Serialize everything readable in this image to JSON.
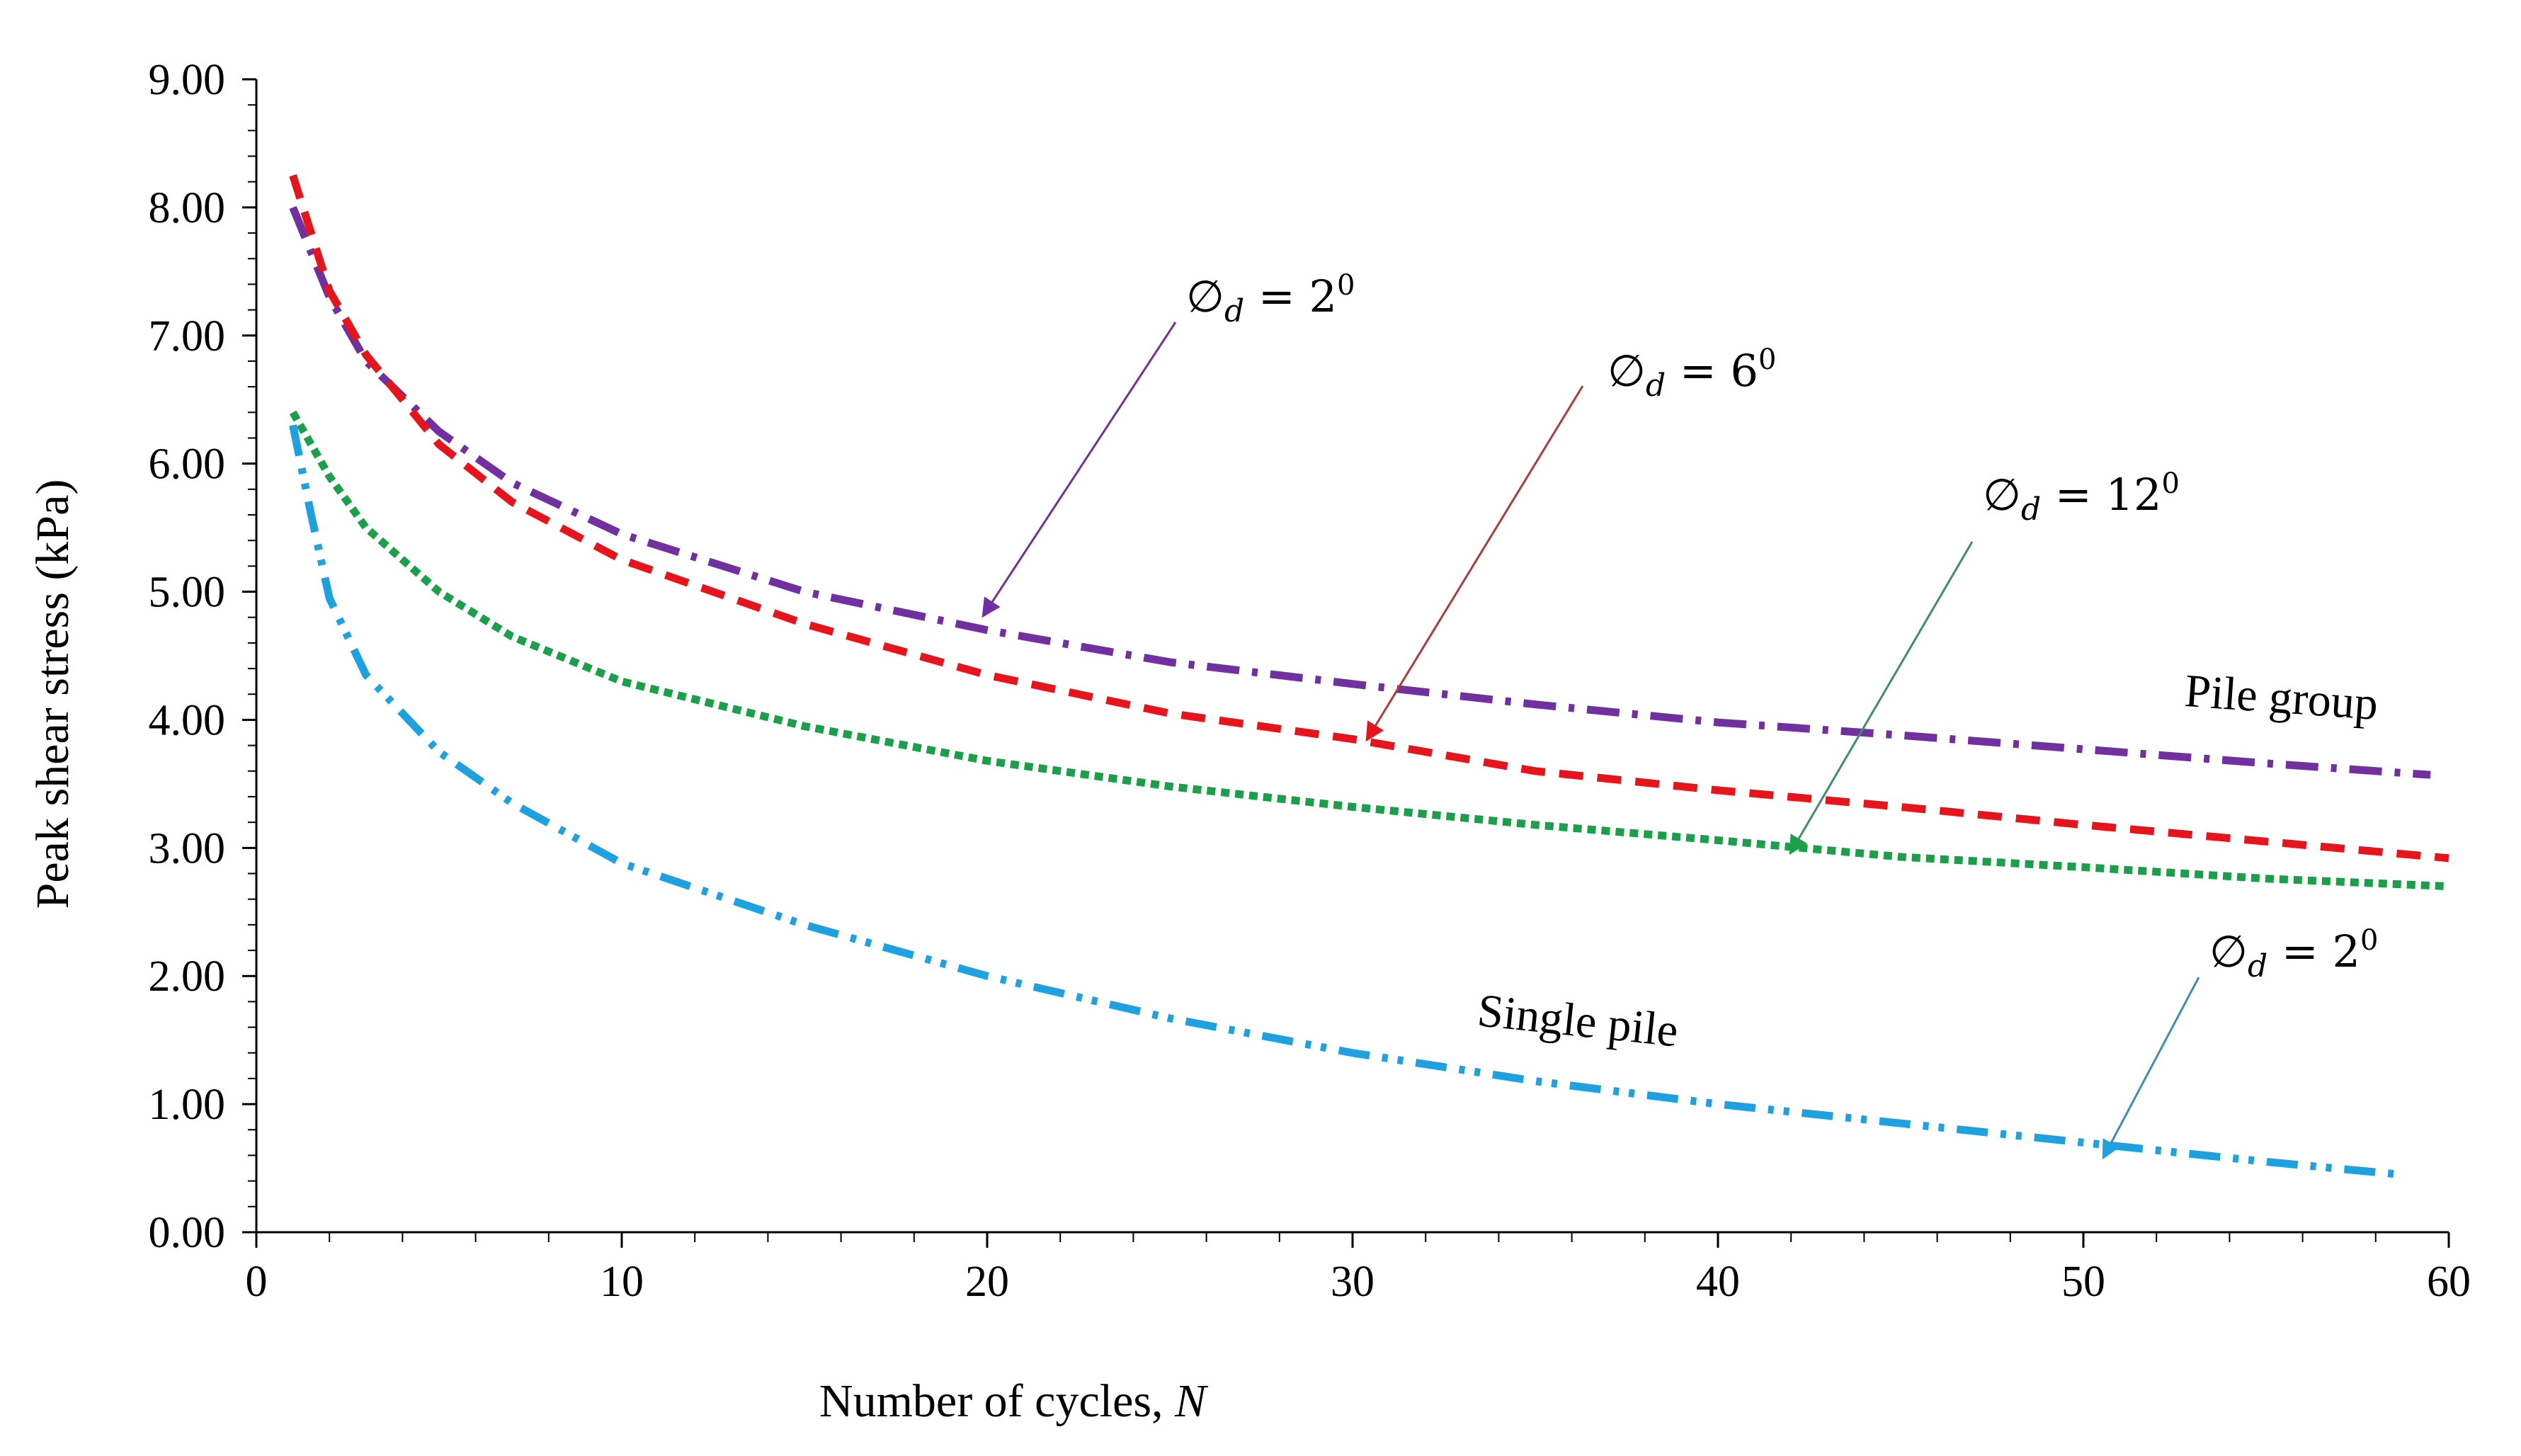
{
  "chart_data": {
    "type": "line",
    "xlabel": "Number of cycles, ",
    "xlabel_italic": "N",
    "ylabel": "Peak shear stress (kPa)",
    "xlim": [
      0,
      60
    ],
    "ylim": [
      0,
      9
    ],
    "x_ticks": [
      "0",
      "10",
      "20",
      "30",
      "40",
      "50",
      "60"
    ],
    "y_ticks": [
      "0.00",
      "1.00",
      "2.00",
      "3.00",
      "4.00",
      "5.00",
      "6.00",
      "7.00",
      "8.00",
      "9.00"
    ],
    "grid": false,
    "legend": "none",
    "series": [
      {
        "label_ref": "phi_2_group",
        "color": "#7030A0",
        "dash": "dash-dot",
        "x": [
          1,
          2,
          3,
          5,
          7,
          10,
          15,
          20,
          25,
          30,
          35,
          40,
          45,
          50,
          55,
          59.5
        ],
        "y": [
          8.0,
          7.3,
          6.8,
          6.25,
          5.85,
          5.45,
          5.0,
          4.7,
          4.45,
          4.28,
          4.12,
          3.98,
          3.88,
          3.77,
          3.66,
          3.57
        ]
      },
      {
        "label_ref": "phi_6_group",
        "color": "#E8141B",
        "dash": "dash",
        "x": [
          1,
          2,
          3,
          5,
          7,
          10,
          15,
          20,
          25,
          30,
          35,
          40,
          45,
          50,
          55,
          60
        ],
        "y": [
          8.25,
          7.35,
          6.85,
          6.15,
          5.7,
          5.25,
          4.75,
          4.35,
          4.05,
          3.85,
          3.6,
          3.45,
          3.32,
          3.18,
          3.05,
          2.92
        ]
      },
      {
        "label_ref": "phi_12_group",
        "color": "#1AA049",
        "dash": "dot",
        "x": [
          1,
          2,
          3,
          5,
          7,
          10,
          15,
          20,
          25,
          30,
          35,
          40,
          45,
          50,
          55,
          60
        ],
        "y": [
          6.4,
          5.9,
          5.5,
          5.0,
          4.65,
          4.3,
          3.95,
          3.68,
          3.48,
          3.32,
          3.18,
          3.06,
          2.93,
          2.85,
          2.76,
          2.7
        ]
      },
      {
        "label_ref": "phi_2_single",
        "color": "#1DA1E0",
        "dash": "dash-dot-dot",
        "x": [
          1,
          1.5,
          2,
          3,
          5,
          7,
          10,
          15,
          20,
          25,
          30,
          35,
          40,
          45,
          50,
          55,
          58.7
        ],
        "y": [
          6.3,
          5.6,
          4.95,
          4.35,
          3.75,
          3.35,
          2.88,
          2.4,
          2.0,
          1.67,
          1.4,
          1.18,
          1.0,
          0.85,
          0.7,
          0.55,
          0.45
        ]
      }
    ],
    "annotations": [
      {
        "id": "phi_2_group",
        "symbol": "∅",
        "sub": "d",
        "eq": " = 2",
        "sup": "0",
        "color": "#7030A0"
      },
      {
        "id": "phi_6_group",
        "symbol": "∅",
        "sub": "d",
        "eq": " = 6",
        "sup": "0",
        "color": "#B03A3A"
      },
      {
        "id": "phi_12_group",
        "symbol": "∅",
        "sub": "d",
        "eq": " = 12",
        "sup": "0",
        "color": "#3E8F65"
      },
      {
        "id": "phi_2_single",
        "symbol": "∅",
        "sub": "d",
        "eq": " = 2",
        "sup": "0",
        "color": "#3C8DBC"
      }
    ],
    "group_label": "Pile group",
    "single_label": "Single pile"
  }
}
